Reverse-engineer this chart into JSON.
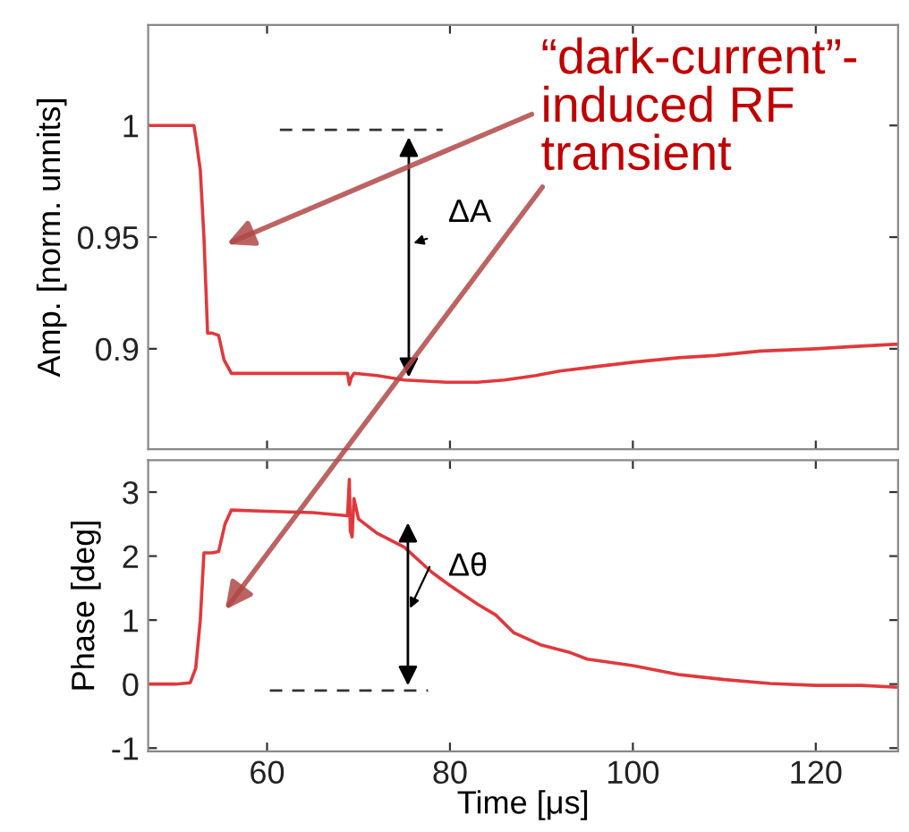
{
  "chart_data": [
    {
      "type": "line",
      "ylabel": "Amp. [norm. unnits]",
      "tick_labels": "y",
      "xlim": [
        47,
        129
      ],
      "xticks": [
        60,
        80,
        100,
        120
      ],
      "ylim": [
        0.855,
        1.045
      ],
      "yticks": [
        0.9,
        0.95,
        1
      ],
      "grid": false,
      "marker": "none",
      "line_style": "solid",
      "annotations": [
        "ΔA",
        "“dark-current”-\ninduced RF\ntransient"
      ],
      "series": [
        {
          "color": "#e0383c",
          "x": [
            47,
            50,
            52,
            52.2,
            52.7,
            53.1,
            53.5,
            54,
            54.7,
            55.3,
            56.1,
            60,
            65,
            68.8,
            69.0,
            69.2,
            69.5,
            72,
            75,
            79.6,
            83,
            86,
            89.4,
            92,
            95.9,
            100,
            105,
            109,
            114,
            120,
            124,
            128.6,
            129
          ],
          "values": [
            1.0,
            1.0,
            1.0,
            0.995,
            0.98,
            0.95,
            0.907,
            0.907,
            0.906,
            0.895,
            0.889,
            0.889,
            0.889,
            0.889,
            0.884,
            0.887,
            0.889,
            0.888,
            0.886,
            0.885,
            0.885,
            0.886,
            0.888,
            0.89,
            0.892,
            0.894,
            0.896,
            0.897,
            0.899,
            0.9,
            0.901,
            0.902,
            0.902
          ]
        }
      ]
    },
    {
      "type": "line",
      "xlabel": "Time [μs]",
      "ylabel": "Phase [deg]",
      "xlim": [
        47,
        129
      ],
      "xticks": [
        60,
        80,
        100,
        120
      ],
      "ylim": [
        -1.05,
        3.5
      ],
      "yticks": [
        -1,
        0,
        1,
        2,
        3
      ],
      "grid": false,
      "marker": "none",
      "line_style": "solid",
      "annotations": [
        "Δθ"
      ],
      "series": [
        {
          "color": "#e0383c",
          "x": [
            47,
            50,
            51.6,
            52.2,
            52.7,
            53.1,
            54,
            54.7,
            55.4,
            56.1,
            60,
            65,
            68.8,
            69.0,
            69.1,
            69.3,
            69.5,
            70,
            72,
            75,
            78,
            80,
            83,
            85,
            87,
            90,
            93,
            95,
            100,
            105,
            110,
            115,
            120,
            125,
            129
          ],
          "values": [
            0.0,
            0.0,
            0.02,
            0.25,
            1.0,
            2.05,
            2.05,
            2.07,
            2.5,
            2.72,
            2.7,
            2.68,
            2.63,
            3.2,
            2.4,
            2.3,
            2.9,
            2.58,
            2.36,
            2.14,
            1.75,
            1.54,
            1.25,
            1.08,
            0.8,
            0.61,
            0.5,
            0.39,
            0.29,
            0.15,
            0.07,
            0.01,
            -0.02,
            -0.02,
            -0.05
          ]
        }
      ]
    }
  ]
}
